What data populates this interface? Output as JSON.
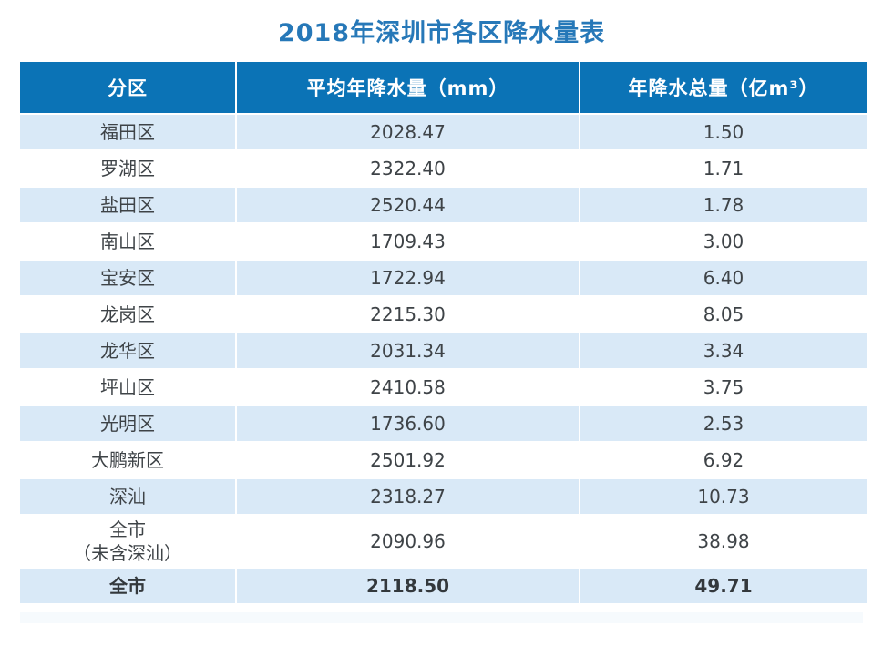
{
  "chart_data": {
    "type": "table",
    "title": "2018年深圳市各区降水量表",
    "columns": [
      "分区",
      "平均年降水量（mm）",
      "年降水总量（亿m³）"
    ],
    "rows": [
      {
        "district": "福田区",
        "avg_annual_rainfall_mm": "2028.47",
        "annual_total_rainfall_100M_m3": "1.50",
        "emphasis": false
      },
      {
        "district": "罗湖区",
        "avg_annual_rainfall_mm": "2322.40",
        "annual_total_rainfall_100M_m3": "1.71",
        "emphasis": false
      },
      {
        "district": "盐田区",
        "avg_annual_rainfall_mm": "2520.44",
        "annual_total_rainfall_100M_m3": "1.78",
        "emphasis": false
      },
      {
        "district": "南山区",
        "avg_annual_rainfall_mm": "1709.43",
        "annual_total_rainfall_100M_m3": "3.00",
        "emphasis": false
      },
      {
        "district": "宝安区",
        "avg_annual_rainfall_mm": "1722.94",
        "annual_total_rainfall_100M_m3": "6.40",
        "emphasis": false
      },
      {
        "district": "龙岗区",
        "avg_annual_rainfall_mm": "2215.30",
        "annual_total_rainfall_100M_m3": "8.05",
        "emphasis": false
      },
      {
        "district": "龙华区",
        "avg_annual_rainfall_mm": "2031.34",
        "annual_total_rainfall_100M_m3": "3.34",
        "emphasis": false
      },
      {
        "district": "坪山区",
        "avg_annual_rainfall_mm": "2410.58",
        "annual_total_rainfall_100M_m3": "3.75",
        "emphasis": false
      },
      {
        "district": "光明区",
        "avg_annual_rainfall_mm": "1736.60",
        "annual_total_rainfall_100M_m3": "2.53",
        "emphasis": false
      },
      {
        "district": "大鹏新区",
        "avg_annual_rainfall_mm": "2501.92",
        "annual_total_rainfall_100M_m3": "6.92",
        "emphasis": false
      },
      {
        "district": "深汕",
        "avg_annual_rainfall_mm": "2318.27",
        "annual_total_rainfall_100M_m3": "10.73",
        "emphasis": false
      },
      {
        "district": "全市\n（未含深汕）",
        "avg_annual_rainfall_mm": "2090.96",
        "annual_total_rainfall_100M_m3": "38.98",
        "emphasis": false
      },
      {
        "district": "全市",
        "avg_annual_rainfall_mm": "2118.50",
        "annual_total_rainfall_100M_m3": "49.71",
        "emphasis": true
      }
    ],
    "layout_hints": {
      "stripe_pattern": "odd rows light blue starting with first data row",
      "colors": {
        "header_background": "#0b73b6",
        "header_text": "#ffffff",
        "stripe_background": "#d9e9f7",
        "plain_row_background": "#ffffff",
        "title_text": "#2678b8",
        "cell_text": "#3e4347"
      }
    }
  }
}
